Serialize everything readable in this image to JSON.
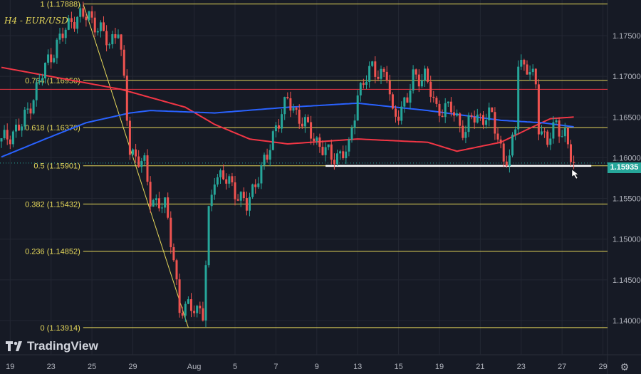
{
  "chart_data": {
    "type": "candlestick",
    "title": "H4 - EUR/USD",
    "symbol": "EUR/USD",
    "timeframe": "H4",
    "ylim": [
      1.138,
      1.1795
    ],
    "y_ticks": [
      "1.17500",
      "1.17000",
      "1.16500",
      "1.16000",
      "1.15500",
      "1.15000",
      "1.14500",
      "1.14000"
    ],
    "y_tick_values": [
      1.175,
      1.17,
      1.165,
      1.16,
      1.155,
      1.15,
      1.145,
      1.14
    ],
    "x_ticks": [
      {
        "label": "19",
        "bar": 3
      },
      {
        "label": "23",
        "bar": 17
      },
      {
        "label": "25",
        "bar": 31
      },
      {
        "label": "29",
        "bar": 45
      },
      {
        "label": "Aug",
        "bar": 66
      },
      {
        "label": "5",
        "bar": 80
      },
      {
        "label": "7",
        "bar": 94
      },
      {
        "label": "9",
        "bar": 108
      },
      {
        "label": "13",
        "bar": 122
      },
      {
        "label": "15",
        "bar": 136
      },
      {
        "label": "19",
        "bar": 150
      },
      {
        "label": "21",
        "bar": 164
      },
      {
        "label": "23",
        "bar": 178
      },
      {
        "label": "27",
        "bar": 192
      },
      {
        "label": "29",
        "bar": 206
      }
    ],
    "bar_count": 197,
    "close_keypoints": [
      [
        0,
        1.162
      ],
      [
        7,
        1.164
      ],
      [
        16,
        1.172
      ],
      [
        24,
        1.177
      ],
      [
        30,
        1.1775
      ],
      [
        37,
        1.174
      ],
      [
        40,
        1.176
      ],
      [
        42,
        1.169
      ],
      [
        44,
        1.161
      ],
      [
        49,
        1.159
      ],
      [
        51,
        1.155
      ],
      [
        56,
        1.154
      ],
      [
        59,
        1.148
      ],
      [
        61,
        1.141
      ],
      [
        66,
        1.142
      ],
      [
        69,
        1.1405
      ],
      [
        71,
        1.153
      ],
      [
        73,
        1.158
      ],
      [
        78,
        1.157
      ],
      [
        84,
        1.154
      ],
      [
        88,
        1.158
      ],
      [
        91,
        1.16
      ],
      [
        94,
        1.164
      ],
      [
        98,
        1.167
      ],
      [
        102,
        1.165
      ],
      [
        108,
        1.162
      ],
      [
        113,
        1.16
      ],
      [
        119,
        1.161
      ],
      [
        122,
        1.168
      ],
      [
        127,
        1.171
      ],
      [
        132,
        1.17
      ],
      [
        134,
        1.165
      ],
      [
        139,
        1.167
      ],
      [
        141,
        1.17
      ],
      [
        145,
        1.17
      ],
      [
        149,
        1.166
      ],
      [
        154,
        1.166
      ],
      [
        159,
        1.163
      ],
      [
        161,
        1.165
      ],
      [
        168,
        1.165
      ],
      [
        172,
        1.16
      ],
      [
        174,
        1.1595
      ],
      [
        176,
        1.164
      ],
      [
        177,
        1.172
      ],
      [
        180,
        1.171
      ],
      [
        183,
        1.169
      ],
      [
        184,
        1.164
      ],
      [
        187,
        1.162
      ],
      [
        190,
        1.164
      ],
      [
        193,
        1.163
      ],
      [
        195,
        1.16
      ],
      [
        196,
        1.15935
      ]
    ],
    "series": [
      {
        "name": "MA (red)",
        "color": "#f23645",
        "keypoints": [
          [
            0,
            1.1711
          ],
          [
            41,
            1.1684
          ],
          [
            63,
            1.1662
          ],
          [
            73,
            1.1641
          ],
          [
            85,
            1.1623
          ],
          [
            98,
            1.1617
          ],
          [
            122,
            1.1623
          ],
          [
            146,
            1.1619
          ],
          [
            156,
            1.1608
          ],
          [
            171,
            1.1619
          ],
          [
            182,
            1.1638
          ],
          [
            188,
            1.1648
          ],
          [
            196,
            1.165
          ]
        ]
      },
      {
        "name": "MA (blue)",
        "color": "#2962ff",
        "keypoints": [
          [
            0,
            1.1601
          ],
          [
            15,
            1.1623
          ],
          [
            29,
            1.1643
          ],
          [
            44,
            1.1655
          ],
          [
            51,
            1.1658
          ],
          [
            73,
            1.1655
          ],
          [
            98,
            1.1662
          ],
          [
            122,
            1.1667
          ],
          [
            146,
            1.1658
          ],
          [
            171,
            1.1646
          ],
          [
            185,
            1.1643
          ],
          [
            196,
            1.1638
          ]
        ]
      }
    ],
    "fib_levels": [
      {
        "ratio": "1",
        "price": "1.17888",
        "label": "1 (1.17888)"
      },
      {
        "ratio": "0.764",
        "price": "1.16950",
        "label": "0.764 (1.16950)"
      },
      {
        "ratio": "0.618",
        "price": "1.16370",
        "label": "0.618 (1.16370)"
      },
      {
        "ratio": "0.5",
        "price": "1.15901",
        "label": "0.5 (1.15901)"
      },
      {
        "ratio": "0.382",
        "price": "1.15432",
        "label": "0.382 (1.15432)"
      },
      {
        "ratio": "0.236",
        "price": "1.14852",
        "label": "0.236 (1.14852)"
      },
      {
        "ratio": "0",
        "price": "1.13914",
        "label": "0 (1.13914)"
      }
    ],
    "resistance_line_price": 1.1684,
    "support_line": {
      "price": 1.159,
      "from_bar": 111,
      "to_bar": 202
    },
    "trend_line": {
      "from": [
        28,
        1.17888
      ],
      "to": [
        64,
        1.13914
      ]
    },
    "last_price": "1.15935",
    "colors": {
      "up": "#26a69a",
      "down": "#ef5350",
      "fib": "#e6d85a",
      "bg": "#161a25",
      "grid": "#232733"
    }
  },
  "branding": {
    "logo_text": "TradingView"
  }
}
